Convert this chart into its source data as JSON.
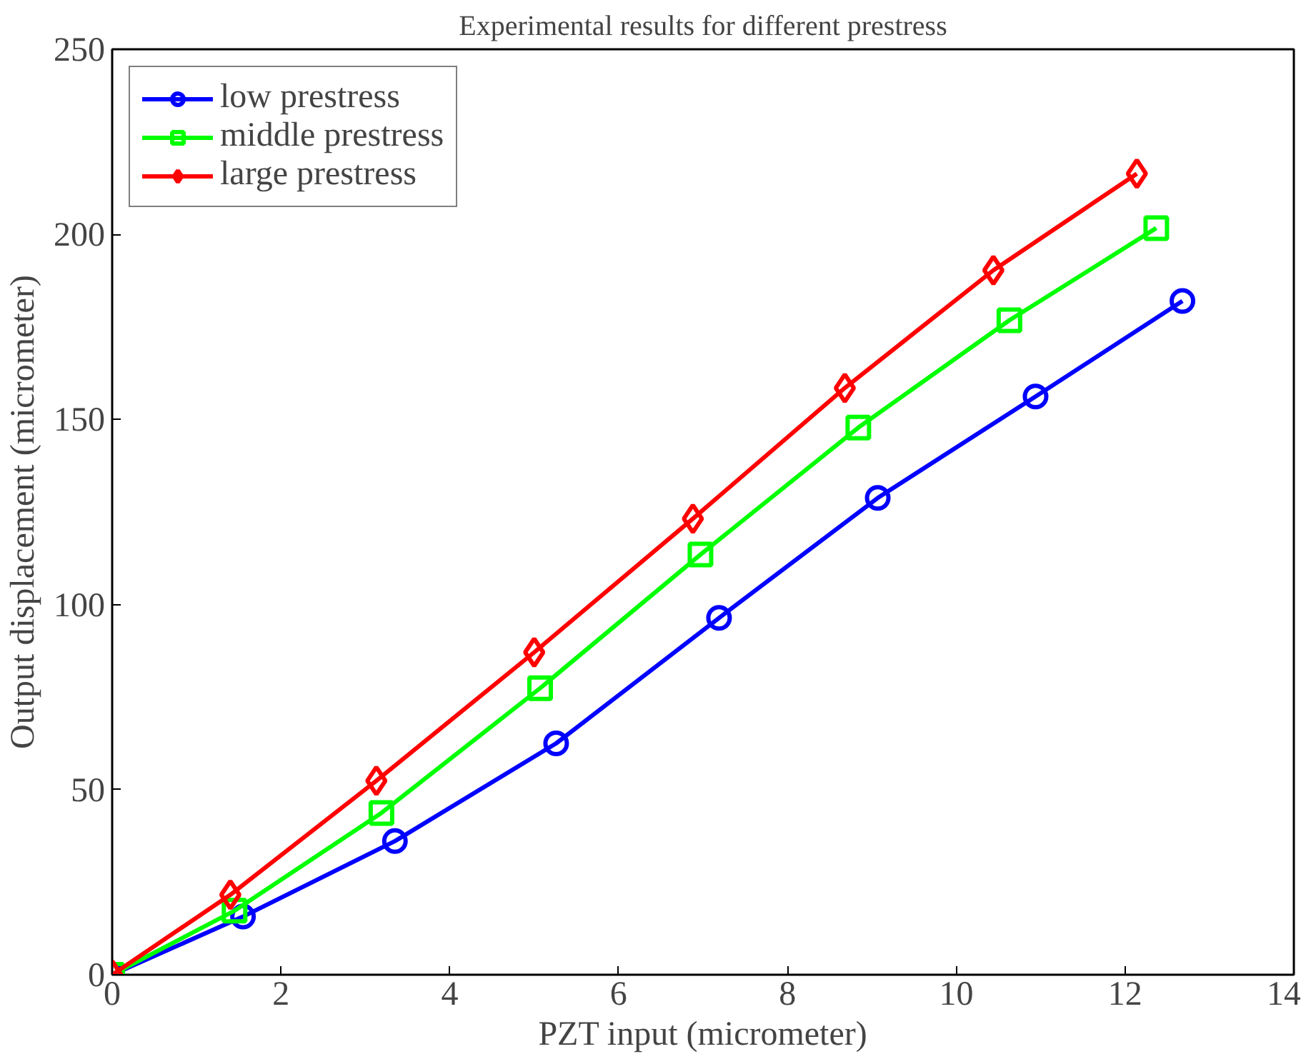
{
  "chart_data": {
    "type": "line",
    "title": "Experimental results for different prestress",
    "xlabel": "PZT input (micrometer)",
    "ylabel": "Output displacement (micrometer)",
    "xlim": [
      0,
      14
    ],
    "ylim": [
      0,
      250
    ],
    "xticks": [
      0,
      2,
      4,
      6,
      8,
      10,
      12,
      14
    ],
    "yticks": [
      0,
      50,
      100,
      150,
      200,
      250
    ],
    "grid": false,
    "legend": "top left",
    "line_style": "solid",
    "series": [
      {
        "name": "low prestress",
        "color": "#0000ff",
        "marker": "circle",
        "x": [
          0,
          1.55,
          3.35,
          5.26,
          7.19,
          9.07,
          10.94,
          12.68
        ],
        "values": [
          0,
          15.7,
          36.1,
          62.5,
          96.4,
          128.8,
          156.2,
          182
        ]
      },
      {
        "name": "middle prestress",
        "color": "#00ff00",
        "marker": "square",
        "x": [
          0,
          1.45,
          3.19,
          5.07,
          6.97,
          8.84,
          10.63,
          12.37
        ],
        "values": [
          0,
          17.3,
          43.7,
          77.4,
          113.5,
          147.8,
          176.8,
          201.7
        ]
      },
      {
        "name": "large prestress",
        "color": "#ff0000",
        "marker": "diamond",
        "x": [
          0,
          1.4,
          3.13,
          5.0,
          6.88,
          8.68,
          10.44,
          12.14
        ],
        "values": [
          0,
          21.6,
          52.4,
          87.1,
          123.2,
          158.5,
          190.3,
          216.4
        ]
      }
    ]
  }
}
